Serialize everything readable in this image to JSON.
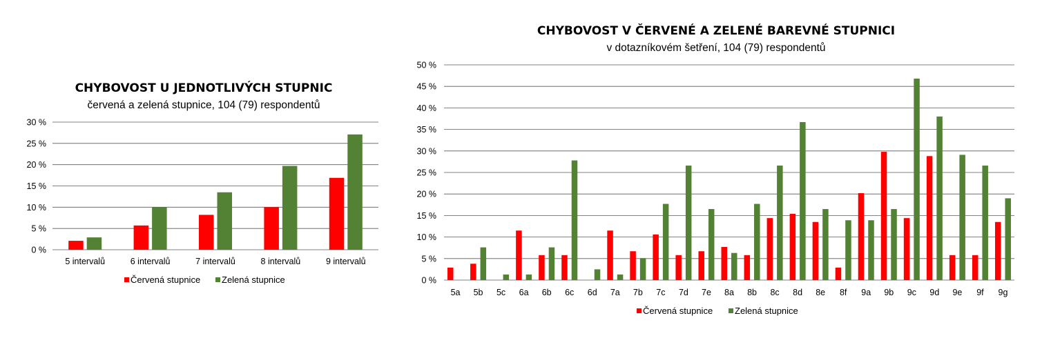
{
  "colors": {
    "red": "#ff0000",
    "green": "#548235"
  },
  "chart_data": [
    {
      "type": "bar",
      "title": "CHYBOVOST U JEDNOTLIVÝCH STUPNIC",
      "subtitle": "červená a zelená stupnice, 104 (79) respondentů",
      "categories": [
        "5 intervalů",
        "6 intervalů",
        "7 intervalů",
        "8 intervalů",
        "9 intervalů"
      ],
      "series": [
        {
          "name": "Červená stupnice",
          "values": [
            2.1,
            5.7,
            8.2,
            10.0,
            16.9
          ]
        },
        {
          "name": "Zelená stupnice",
          "values": [
            2.9,
            10.0,
            13.5,
            19.7,
            27.1
          ]
        }
      ],
      "ylim": [
        0,
        30
      ],
      "yticks": [
        0,
        5,
        10,
        15,
        20,
        25,
        30
      ],
      "ytick_labels": [
        "0 %",
        "5 %",
        "10 %",
        "15 %",
        "20 %",
        "25 %",
        "30 %"
      ],
      "grid": true,
      "legend": "bottom"
    },
    {
      "type": "bar",
      "title": "CHYBOVOST V ČERVENÉ A ZELENÉ BAREVNÉ STUPNICI",
      "subtitle": "v dotazníkovém šetření, 104 (79) respondentů",
      "categories": [
        "5a",
        "5b",
        "5c",
        "6a",
        "6b",
        "6c",
        "6d",
        "7a",
        "7b",
        "7c",
        "7d",
        "7e",
        "8a",
        "8b",
        "8c",
        "8d",
        "8e",
        "8f",
        "9a",
        "9b",
        "9c",
        "9d",
        "9e",
        "9f",
        "9g"
      ],
      "series": [
        {
          "name": "Červená stupnice",
          "values": [
            2.9,
            3.8,
            0,
            11.5,
            5.8,
            5.8,
            0,
            11.5,
            6.7,
            10.6,
            5.8,
            6.7,
            7.7,
            5.8,
            14.4,
            15.4,
            13.5,
            2.9,
            20.2,
            29.8,
            14.4,
            28.8,
            5.8,
            5.8,
            13.5
          ]
        },
        {
          "name": "Zelená stupnice",
          "values": [
            0,
            7.6,
            1.3,
            1.3,
            7.6,
            27.8,
            2.5,
            1.3,
            5.1,
            17.7,
            26.6,
            16.5,
            6.3,
            17.7,
            26.6,
            36.7,
            16.5,
            13.9,
            13.9,
            16.5,
            46.8,
            38.0,
            29.1,
            26.6,
            19.0
          ]
        }
      ],
      "ylim": [
        0,
        50
      ],
      "yticks": [
        0,
        5,
        10,
        15,
        20,
        25,
        30,
        35,
        40,
        45,
        50
      ],
      "ytick_labels": [
        "0 %",
        "5 %",
        "10 %",
        "15 %",
        "20 %",
        "25 %",
        "30 %",
        "35 %",
        "40 %",
        "45 %",
        "50 %"
      ],
      "grid": true,
      "legend": "bottom"
    }
  ]
}
